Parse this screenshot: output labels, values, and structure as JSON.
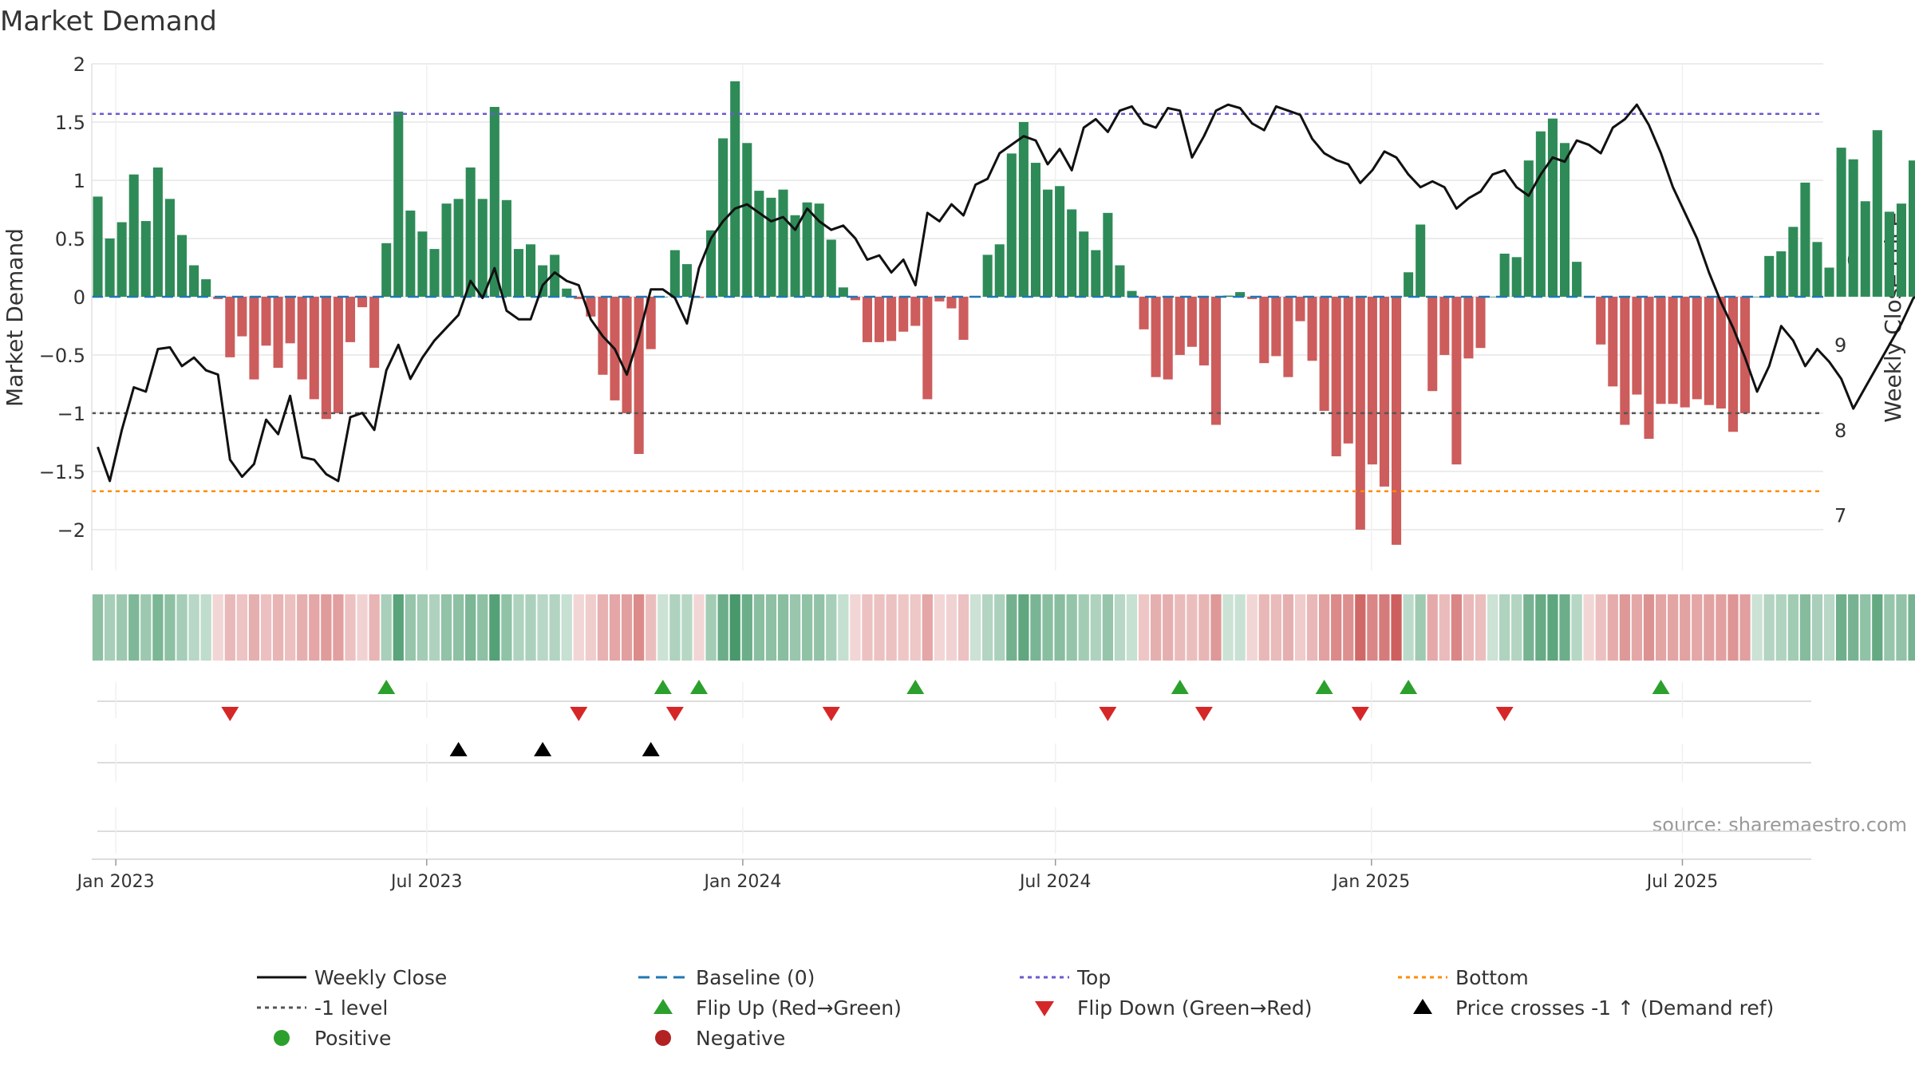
{
  "chart_data": {
    "type": "bar",
    "title": "Market Demand",
    "ylabel": "Market Demand",
    "y2label": "Weekly Close Price",
    "source": "source: sharemaestro.com",
    "ylim": [
      -2.35,
      2.0
    ],
    "y2lim": [
      6.35,
      12.3
    ],
    "yticks": [
      2,
      1.5,
      1,
      0.5,
      0,
      -0.5,
      -1,
      -1.5,
      -2
    ],
    "yticklabels": [
      "2",
      "1.5",
      "1",
      "0.5",
      "0",
      "−0.5",
      "−1",
      "−1.5",
      "−2"
    ],
    "y2ticks": [
      11,
      10,
      9,
      8,
      7
    ],
    "y2ticklabels": [
      "11",
      "10",
      "9",
      "8",
      "7"
    ],
    "xrange": [
      "2022-12-18",
      "2025-09-21"
    ],
    "xticks": [
      {
        "date": "2023-01-01",
        "label": "Jan 2023"
      },
      {
        "date": "2023-07-01",
        "label": "Jul 2023"
      },
      {
        "date": "2024-01-01",
        "label": "Jan 2024"
      },
      {
        "date": "2024-07-01",
        "label": "Jul 2024"
      },
      {
        "date": "2025-01-01",
        "label": "Jan 2025"
      },
      {
        "date": "2025-07-01",
        "label": "Jul 2025"
      }
    ],
    "start_week": "2022-12-18",
    "levels": {
      "top": 1.57,
      "bottom": -1.67,
      "minus_one": -1.0,
      "baseline": 0
    },
    "demand": [
      0.86,
      0.5,
      0.64,
      1.05,
      0.65,
      1.11,
      0.84,
      0.53,
      0.27,
      0.15,
      -0.02,
      -0.52,
      -0.34,
      -0.71,
      -0.42,
      -0.61,
      -0.4,
      -0.71,
      -0.88,
      -1.05,
      -1.0,
      -0.39,
      -0.09,
      -0.61,
      0.46,
      1.59,
      0.74,
      0.56,
      0.41,
      0.8,
      0.84,
      1.11,
      0.84,
      1.63,
      0.83,
      0.41,
      0.45,
      0.27,
      0.36,
      0.07,
      -0.02,
      -0.17,
      -0.67,
      -0.89,
      -1.0,
      -1.35,
      -0.45,
      0.0,
      0.4,
      0.28,
      -0.01,
      0.57,
      1.36,
      1.85,
      1.32,
      0.91,
      0.85,
      0.92,
      0.7,
      0.81,
      0.8,
      0.49,
      0.08,
      -0.03,
      -0.39,
      -0.39,
      -0.38,
      -0.3,
      -0.25,
      -0.88,
      -0.04,
      -0.1,
      -0.37,
      0.0,
      0.36,
      0.45,
      1.23,
      1.5,
      1.15,
      0.92,
      0.95,
      0.75,
      0.56,
      0.4,
      0.72,
      0.27,
      0.05,
      -0.28,
      -0.69,
      -0.71,
      -0.5,
      -0.43,
      -0.59,
      -1.1,
      0.01,
      0.04,
      -0.02,
      -0.57,
      -0.51,
      -0.69,
      -0.21,
      -0.55,
      -0.98,
      -1.37,
      -1.26,
      -2.0,
      -1.44,
      -1.63,
      -2.13,
      0.21,
      0.62,
      -0.81,
      -0.5,
      -1.44,
      -0.53,
      -0.44,
      0.0,
      0.37,
      0.34,
      1.17,
      1.42,
      1.53,
      1.32,
      0.3,
      -0.01,
      -0.41,
      -0.77,
      -1.1,
      -0.84,
      -1.22,
      -0.92,
      -0.92,
      -0.95,
      -0.88,
      -0.93,
      -0.96,
      -1.16,
      -1.0,
      0.0,
      0.35,
      0.39,
      0.6,
      0.98,
      0.47,
      0.25,
      1.28,
      1.18,
      0.82,
      1.43,
      0.73,
      0.8,
      1.17
    ],
    "close": [
      7.8,
      7.4,
      8.0,
      8.5,
      8.45,
      8.95,
      8.97,
      8.75,
      8.85,
      8.7,
      8.65,
      7.65,
      7.45,
      7.6,
      8.12,
      7.95,
      8.4,
      7.68,
      7.65,
      7.48,
      7.4,
      8.15,
      8.2,
      8.0,
      8.7,
      9.0,
      8.6,
      8.85,
      9.05,
      9.2,
      9.35,
      9.75,
      9.55,
      9.9,
      9.4,
      9.3,
      9.3,
      9.7,
      9.85,
      9.75,
      9.7,
      9.3,
      9.1,
      8.95,
      8.65,
      9.1,
      9.65,
      9.65,
      9.55,
      9.25,
      9.9,
      10.25,
      10.45,
      10.6,
      10.65,
      10.55,
      10.45,
      10.5,
      10.35,
      10.6,
      10.45,
      10.35,
      10.4,
      10.25,
      10.0,
      10.05,
      9.85,
      10.0,
      9.7,
      10.55,
      10.45,
      10.65,
      10.52,
      10.88,
      10.95,
      11.25,
      11.35,
      11.45,
      11.4,
      11.12,
      11.3,
      11.05,
      11.55,
      11.65,
      11.5,
      11.75,
      11.8,
      11.6,
      11.55,
      11.78,
      11.75,
      11.2,
      11.45,
      11.75,
      11.82,
      11.78,
      11.6,
      11.52,
      11.8,
      11.75,
      11.7,
      11.42,
      11.25,
      11.17,
      11.12,
      10.9,
      11.05,
      11.27,
      11.2,
      11.0,
      10.85,
      10.92,
      10.85,
      10.6,
      10.72,
      10.8,
      11.0,
      11.05,
      10.85,
      10.75,
      11.0,
      11.2,
      11.15,
      11.4,
      11.35,
      11.25,
      11.55,
      11.65,
      11.82,
      11.58,
      11.25,
      10.85,
      10.55,
      10.25,
      9.85,
      9.5,
      9.2,
      8.85,
      8.45,
      8.75,
      9.22,
      9.05,
      8.75,
      8.95,
      8.8,
      8.6,
      8.25,
      8.5,
      8.75,
      9.0,
      9.25,
      9.55,
      9.6,
      9.85,
      9.75,
      10.55,
      10.2,
      10.5,
      10.6,
      10.1,
      9.95,
      10.15
    ],
    "price_scale_note": "weekly close plotted against right axis",
    "flip_up_weeks": [
      24,
      47,
      50,
      68,
      90,
      102,
      109,
      130
    ],
    "flip_down_weeks": [
      11,
      40,
      48,
      61,
      84,
      92,
      105,
      117
    ],
    "price_cross_weeks": [
      30,
      37,
      46
    ],
    "legend": [
      {
        "label": "Weekly Close",
        "kind": "line-solid",
        "color": "#111111"
      },
      {
        "label": "Baseline (0)",
        "kind": "line-dash",
        "color": "#1f77b4"
      },
      {
        "label": "Top",
        "kind": "line-dot",
        "color": "#6a5acd"
      },
      {
        "label": "Bottom",
        "kind": "line-dot",
        "color": "#ff8c00"
      },
      {
        "label": "-1 level",
        "kind": "line-dot",
        "color": "#555555"
      },
      {
        "label": "Flip Up (Red→Green)",
        "kind": "tri-up",
        "color": "#2ca02c"
      },
      {
        "label": "Flip Down (Green→Red)",
        "kind": "tri-down",
        "color": "#d62728"
      },
      {
        "label": "Price crosses -1 ↑ (Demand ref)",
        "kind": "tri-up",
        "color": "#000000"
      },
      {
        "label": "Positive",
        "kind": "dot",
        "color": "#2ca02c"
      },
      {
        "label": "Negative",
        "kind": "dot",
        "color": "#b22222"
      }
    ],
    "colors": {
      "positive_bar": "#2e8b57",
      "negative_bar": "#cd5c5c",
      "close_line": "#111111",
      "baseline": "#1f77b4",
      "top": "#6a5acd",
      "bottom": "#ff8c00",
      "minus_one": "#555555",
      "grid": "#e6e6e6"
    }
  }
}
